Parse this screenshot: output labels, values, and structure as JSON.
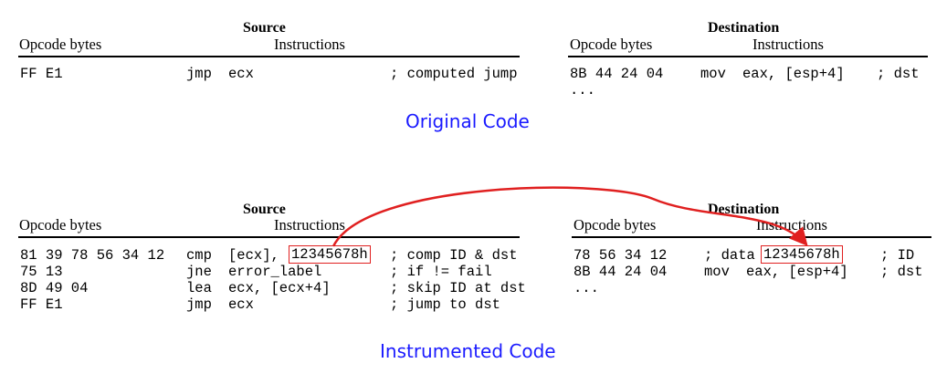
{
  "original": {
    "source": {
      "title": "Source",
      "opcode_header": "Opcode bytes",
      "instr_header": "Instructions",
      "rows": [
        {
          "bytes": "FF E1",
          "mnem": "jmp",
          "ops": "ecx",
          "comment": "; computed jump"
        }
      ]
    },
    "destination": {
      "title": "Destination",
      "opcode_header": "Opcode bytes",
      "instr_header": "Instructions",
      "rows": [
        {
          "bytes": "8B 44 24 04",
          "mnem": "mov",
          "ops": "eax, [esp+4]",
          "comment": "; dst"
        },
        {
          "bytes": "...",
          "mnem": "",
          "ops": "",
          "comment": ""
        }
      ]
    },
    "caption": "Original Code",
    "caption_color": "#1a1aff"
  },
  "instrumented": {
    "source": {
      "title": "Source",
      "opcode_header": "Opcode bytes",
      "instr_header": "Instructions",
      "rows": [
        {
          "bytes": "81 39 78 56 34 12",
          "mnem": "cmp",
          "ops_pre": "[ecx],",
          "ops_box": "12345678h",
          "comment": "; comp ID & dst"
        },
        {
          "bytes": "75 13",
          "mnem": "jne",
          "ops": "error_label",
          "comment": "; if != fail"
        },
        {
          "bytes": "8D 49 04",
          "mnem": "lea",
          "ops": "ecx, [ecx+4]",
          "comment": "; skip ID at dst"
        },
        {
          "bytes": "FF E1",
          "mnem": "jmp",
          "ops": "ecx",
          "comment": "; jump to dst"
        }
      ]
    },
    "destination": {
      "title": "Destination",
      "opcode_header": "Opcode bytes",
      "instr_header": "Instructions",
      "rows": [
        {
          "bytes": "78 56 34 12",
          "pre": "; data",
          "box": "12345678h",
          "comment": "; ID"
        },
        {
          "bytes": "8B 44 24 04",
          "mnem": "mov",
          "ops": "eax, [esp+4]",
          "comment": "; dst"
        },
        {
          "bytes": "...",
          "mnem": "",
          "ops": "",
          "comment": ""
        }
      ]
    },
    "caption": "Instrumented Code",
    "caption_color": "#1a1aff",
    "highlight_color": "#e02020"
  }
}
